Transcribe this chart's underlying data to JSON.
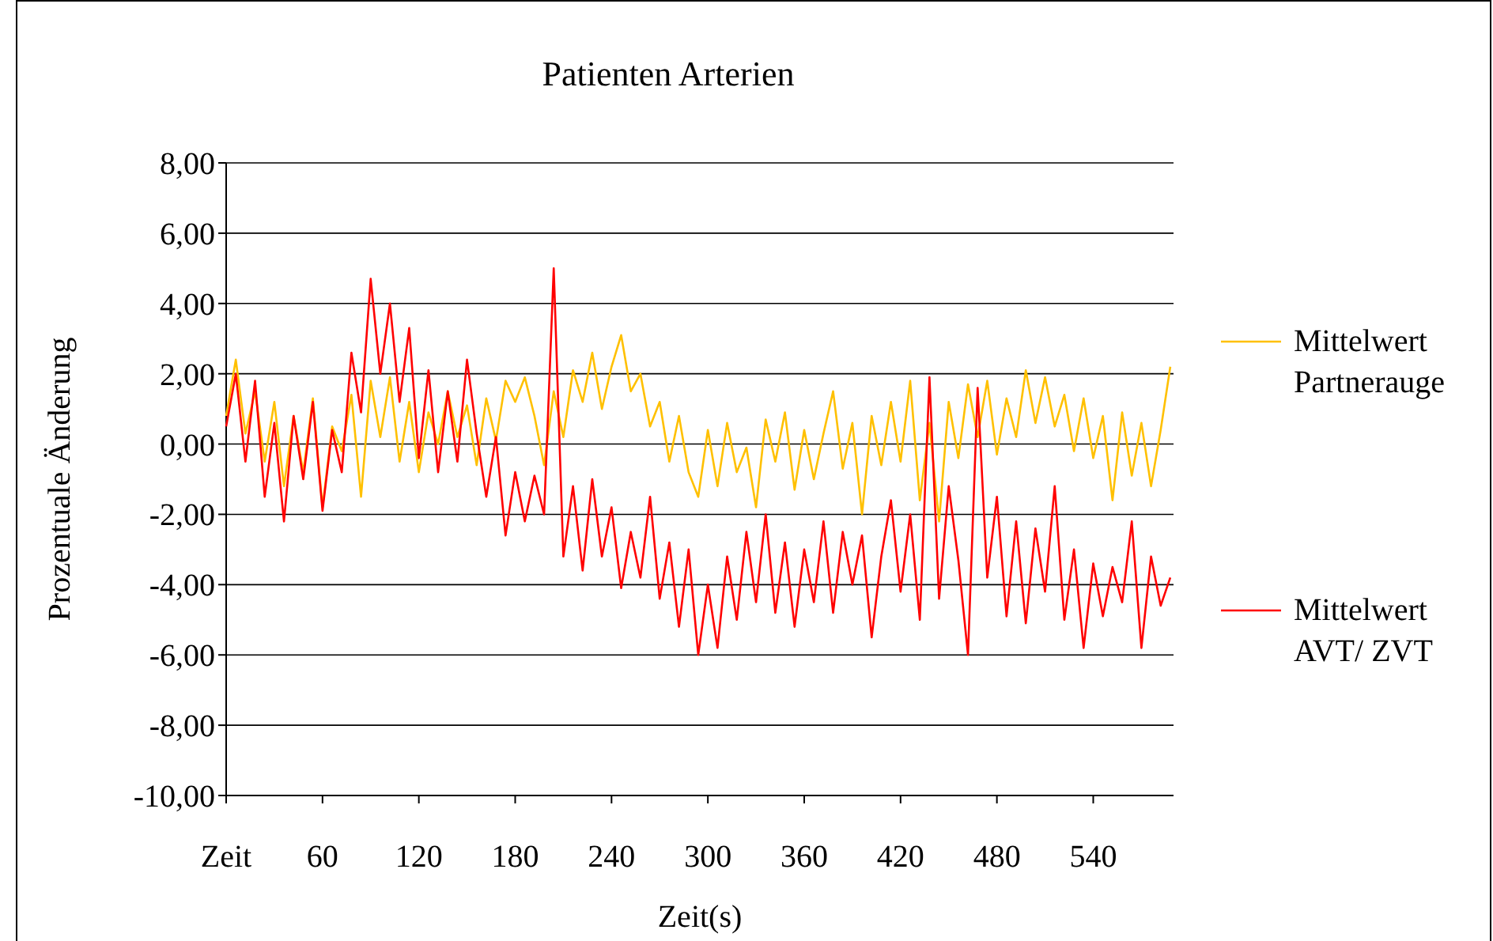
{
  "chart_data": {
    "type": "line",
    "title": "Patienten Arterien",
    "xlabel": "Zeit(s)",
    "ylabel": "Prozentuale Änderung",
    "x": [
      0,
      6,
      12,
      18,
      24,
      30,
      36,
      42,
      48,
      54,
      60,
      66,
      72,
      78,
      84,
      90,
      96,
      102,
      108,
      114,
      120,
      126,
      132,
      138,
      144,
      150,
      156,
      162,
      168,
      174,
      180,
      186,
      192,
      198,
      204,
      210,
      216,
      222,
      228,
      234,
      240,
      246,
      252,
      258,
      264,
      270,
      276,
      282,
      288,
      294,
      300,
      306,
      312,
      318,
      324,
      330,
      336,
      342,
      348,
      354,
      360,
      366,
      372,
      378,
      384,
      390,
      396,
      402,
      408,
      414,
      420,
      426,
      432,
      438,
      444,
      450,
      456,
      462,
      468,
      474,
      480,
      486,
      492,
      498,
      504,
      510,
      516,
      522,
      528,
      534,
      540,
      546,
      552,
      558,
      564,
      570,
      576,
      582,
      588
    ],
    "series": [
      {
        "name": "Mittelwert Partnerauge",
        "color": "#ffc000",
        "values": [
          0.8,
          2.4,
          0.3,
          1.5,
          -0.5,
          1.2,
          -1.2,
          0.8,
          -0.8,
          1.3,
          -1.8,
          0.5,
          -0.2,
          1.4,
          -1.5,
          1.8,
          0.2,
          1.9,
          -0.5,
          1.2,
          -0.8,
          0.9,
          0,
          1.5,
          0.2,
          1.1,
          -0.6,
          1.3,
          0.1,
          1.8,
          1.2,
          1.9,
          0.8,
          -0.6,
          1.5,
          0.2,
          2.1,
          1.2,
          2.6,
          1.0,
          2.2,
          3.1,
          1.5,
          2.0,
          0.5,
          1.2,
          -0.5,
          0.8,
          -0.8,
          -1.5,
          0.4,
          -1.2,
          0.6,
          -0.8,
          -0.1,
          -1.8,
          0.7,
          -0.5,
          0.9,
          -1.3,
          0.4,
          -1.0,
          0.3,
          1.5,
          -0.7,
          0.6,
          -2.0,
          0.8,
          -0.6,
          1.2,
          -0.5,
          1.8,
          -1.6,
          0.6,
          -2.2,
          1.2,
          -0.4,
          1.7,
          0.2,
          1.8,
          -0.3,
          1.3,
          0.2,
          2.1,
          0.6,
          1.9,
          0.5,
          1.4,
          -0.2,
          1.3,
          -0.4,
          0.8,
          -1.6,
          0.9,
          -0.9,
          0.6,
          -1.2,
          0.4,
          2.2
        ]
      },
      {
        "name": "Mittelwert AVT/ ZVT",
        "color": "#ff0000",
        "values": [
          0.5,
          2.0,
          -0.5,
          1.8,
          -1.5,
          0.6,
          -2.2,
          0.8,
          -1.0,
          1.2,
          -1.9,
          0.4,
          -0.8,
          2.6,
          0.9,
          4.7,
          2.0,
          4.0,
          1.2,
          3.3,
          -0.4,
          2.1,
          -0.8,
          1.5,
          -0.5,
          2.4,
          0.3,
          -1.5,
          0.2,
          -2.6,
          -0.8,
          -2.2,
          -0.9,
          -2.0,
          5.0,
          -3.2,
          -1.2,
          -3.6,
          -1.0,
          -3.2,
          -1.8,
          -4.1,
          -2.5,
          -3.8,
          -1.5,
          -4.4,
          -2.8,
          -5.2,
          -3.0,
          -6.0,
          -4.0,
          -5.8,
          -3.2,
          -5.0,
          -2.5,
          -4.5,
          -2.0,
          -4.8,
          -2.8,
          -5.2,
          -3.0,
          -4.5,
          -2.2,
          -4.8,
          -2.5,
          -4.0,
          -2.6,
          -5.5,
          -3.2,
          -1.6,
          -4.2,
          -2.0,
          -5.0,
          1.9,
          -4.4,
          -1.2,
          -3.3,
          -6.0,
          1.6,
          -3.8,
          -1.5,
          -4.9,
          -2.2,
          -5.1,
          -2.4,
          -4.2,
          -1.2,
          -5.0,
          -3.0,
          -5.8,
          -3.4,
          -4.9,
          -3.5,
          -4.5,
          -2.2,
          -5.8,
          -3.2,
          -4.6,
          -3.8
        ]
      }
    ],
    "xlim": [
      0,
      590
    ],
    "xticks": [
      {
        "value": 0,
        "label": "Zeit"
      },
      60,
      120,
      180,
      240,
      300,
      360,
      420,
      480,
      540
    ],
    "ylim": [
      -10,
      8
    ],
    "yticks": [
      {
        "value": -10,
        "label": "-10,00"
      },
      {
        "value": -8,
        "label": "-8,00"
      },
      {
        "value": -6,
        "label": "-6,00"
      },
      {
        "value": -4,
        "label": "-4,00"
      },
      {
        "value": -2,
        "label": "-2,00"
      },
      {
        "value": 0,
        "label": "0,00"
      },
      {
        "value": 2,
        "label": "2,00"
      },
      {
        "value": 4,
        "label": "4,00"
      },
      {
        "value": 6,
        "label": "6,00"
      },
      {
        "value": 8,
        "label": "8,00"
      }
    ],
    "grid": "y",
    "legend": "right",
    "marker": "none",
    "line_style": "solid"
  }
}
